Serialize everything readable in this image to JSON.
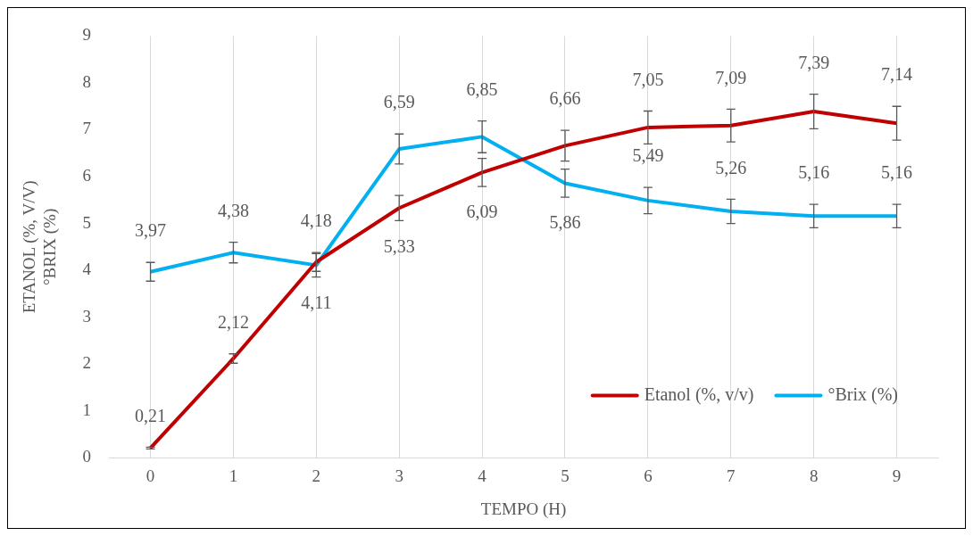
{
  "chart_data": {
    "type": "line",
    "xlabel": "TEMPO (H)",
    "ylabel": "ETANOL (%, V/V)\n°BRIX (%)",
    "categories": [
      "0",
      "1",
      "2",
      "3",
      "4",
      "5",
      "6",
      "7",
      "8",
      "9"
    ],
    "ylim": [
      0,
      9
    ],
    "yticks": [
      0,
      1,
      2,
      3,
      4,
      5,
      6,
      7,
      8,
      9
    ],
    "grid": "x",
    "legend": "bottom right",
    "marker": "none",
    "line_style": "solid",
    "series": [
      {
        "name": "Etanol (%, v/v)",
        "color": "#c00000",
        "values": [
          0.21,
          2.12,
          4.18,
          5.33,
          6.09,
          6.66,
          7.05,
          7.09,
          7.39,
          7.14
        ],
        "value_labels": [
          "0,21",
          "2,12",
          "4,18",
          "5,33",
          "6,09",
          "6,66",
          "7,05",
          "7,09",
          "7,39",
          "7,14"
        ],
        "errors": [
          0.02,
          0.1,
          0.2,
          0.27,
          0.3,
          0.33,
          0.35,
          0.35,
          0.37,
          0.36
        ]
      },
      {
        "name": "°Brix (%)",
        "color": "#00b0f0",
        "values": [
          3.97,
          4.38,
          4.11,
          6.59,
          6.85,
          5.86,
          5.49,
          5.26,
          5.16,
          5.16
        ],
        "value_labels": [
          "3,97",
          "4,38",
          "4,11",
          "6,59",
          "6,85",
          "5,86",
          "5,49",
          "5,26",
          "5,16",
          "5,16"
        ],
        "errors": [
          0.2,
          0.22,
          0.25,
          0.32,
          0.34,
          0.3,
          0.28,
          0.26,
          0.25,
          0.25
        ]
      }
    ]
  }
}
